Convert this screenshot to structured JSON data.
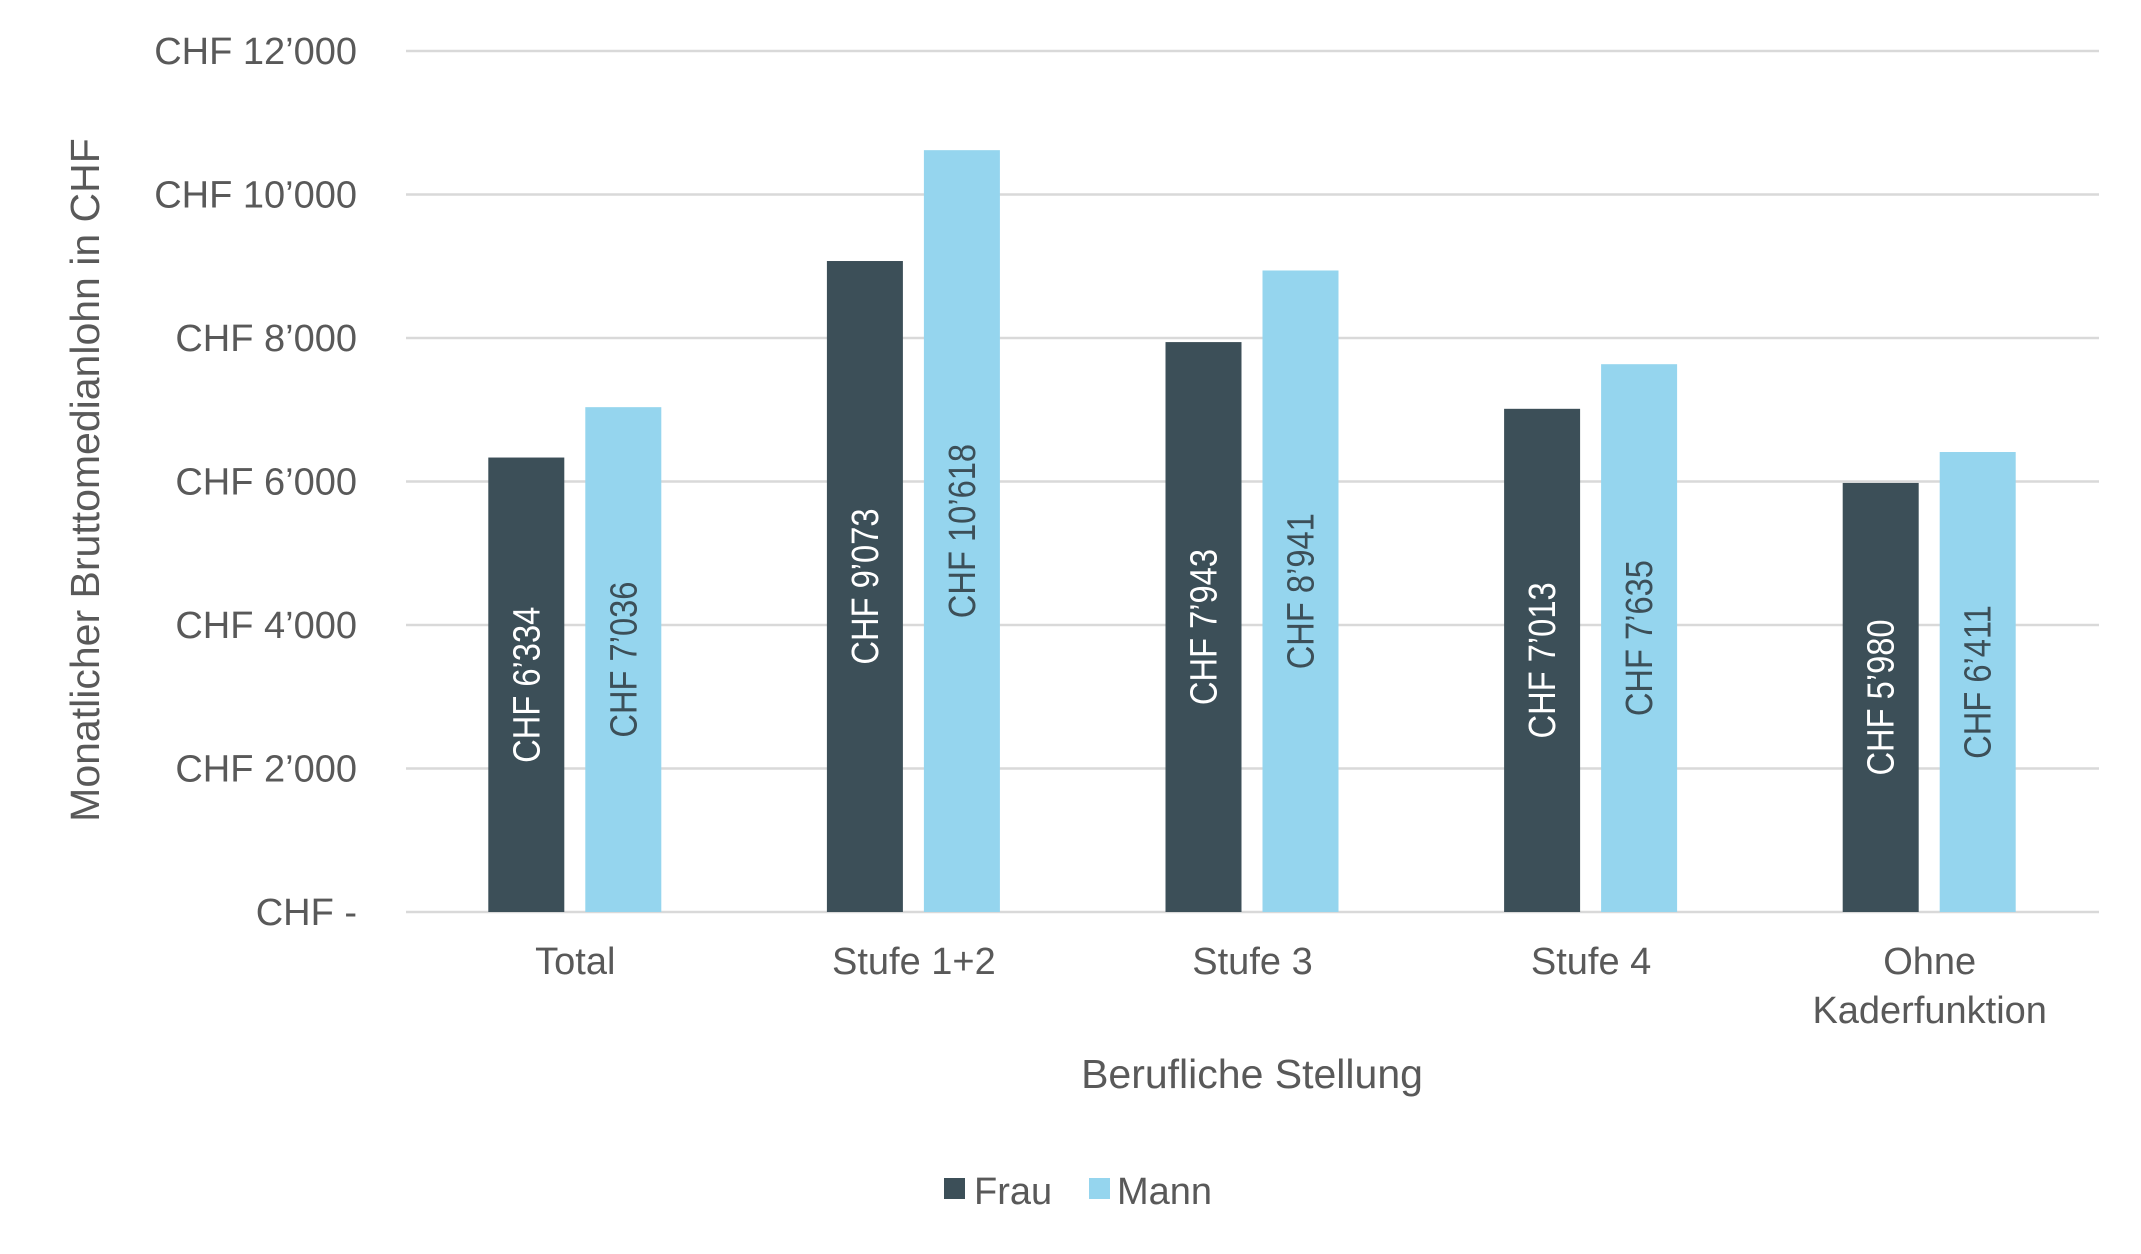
{
  "chart_data": {
    "type": "bar",
    "categories": [
      "Total",
      "Stufe 1+2",
      "Stufe 3",
      "Stufe 4",
      "Ohne Kaderfunktion"
    ],
    "category_lines": [
      [
        "Total"
      ],
      [
        "Stufe 1+2"
      ],
      [
        "Stufe 3"
      ],
      [
        "Stufe 4"
      ],
      [
        "Ohne",
        "Kaderfunktion"
      ]
    ],
    "series": [
      {
        "name": "Frau",
        "color": "#3c4f58",
        "label_color": "#ffffff",
        "values": [
          6334,
          9073,
          7943,
          7013,
          5980
        ],
        "labels": [
          "CHF 6’334",
          "CHF 9’073",
          "CHF 7’943",
          "CHF 7’013",
          "CHF 5’980"
        ]
      },
      {
        "name": "Mann",
        "color": "#95d5ee",
        "label_color": "#3c4f58",
        "values": [
          7036,
          10618,
          8941,
          7635,
          6411
        ],
        "labels": [
          "CHF 7’036",
          "CHF 10’618",
          "CHF 8’941",
          "CHF 7’635",
          "CHF 6’411"
        ]
      }
    ],
    "xlabel": "Berufliche Stellung",
    "ylabel": "Monatlicher Bruttomedianlohn in CHF",
    "ylim": [
      0,
      12000
    ],
    "yticks": [
      0,
      2000,
      4000,
      6000,
      8000,
      10000,
      12000
    ],
    "ytick_labels": [
      "CHF -",
      "CHF 2’000",
      "CHF 4’000",
      "CHF 6’000",
      "CHF 8’000",
      "CHF 10’000",
      "CHF 12’000"
    ],
    "grid": true,
    "legend_position": "bottom",
    "gridline_color": "#d9d9d9"
  }
}
